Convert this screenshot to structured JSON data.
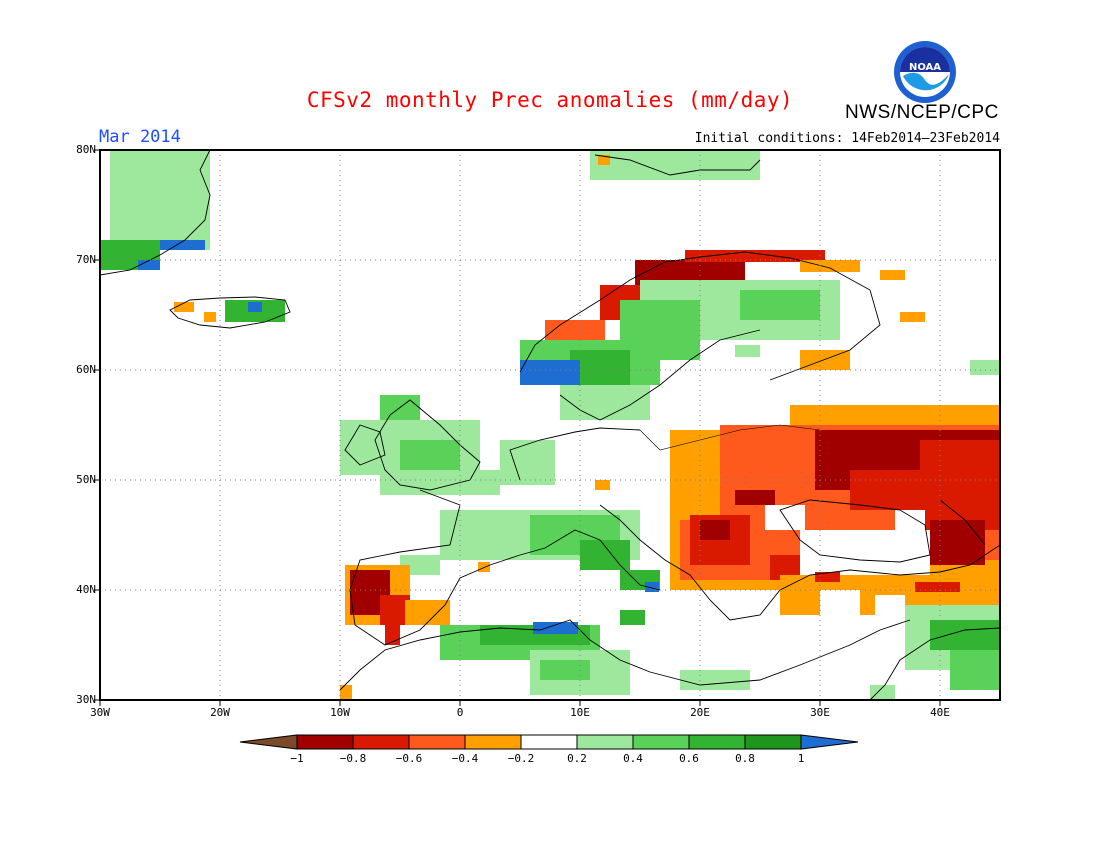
{
  "header": {
    "title": "CFSv2 monthly Prec anomalies (mm/day)",
    "agency": "NWS/NCEP/CPC",
    "logo_text": "NOAA",
    "month": "Mar 2014",
    "initial_conditions": "Initial conditions: 14Feb2014–23Feb2014"
  },
  "axes": {
    "lat_labels": [
      "80N",
      "70N",
      "60N",
      "50N",
      "40N",
      "30N"
    ],
    "lon_labels": [
      "30W",
      "20W",
      "10W",
      "0",
      "10E",
      "20E",
      "30E",
      "40E"
    ]
  },
  "colors": {
    "c_neg_lt_m1": "#7c4a2a",
    "c_m1_m08": "#a00000",
    "c_m08_m06": "#d91a00",
    "c_m06_m04": "#ff5a1e",
    "c_m04_m02": "#ffa000",
    "c_m02_02": "#ffffff",
    "c_02_04": "#9ee89e",
    "c_04_06": "#5ad25a",
    "c_06_08": "#32b432",
    "c_08_1": "#1e961e",
    "c_gt_1": "#1e6ed2"
  },
  "colorbar": {
    "labels": [
      "−1",
      "−0.8",
      "−0.6",
      "−0.4",
      "−0.2",
      "0.2",
      "0.4",
      "0.6",
      "0.8",
      "1"
    ]
  }
}
